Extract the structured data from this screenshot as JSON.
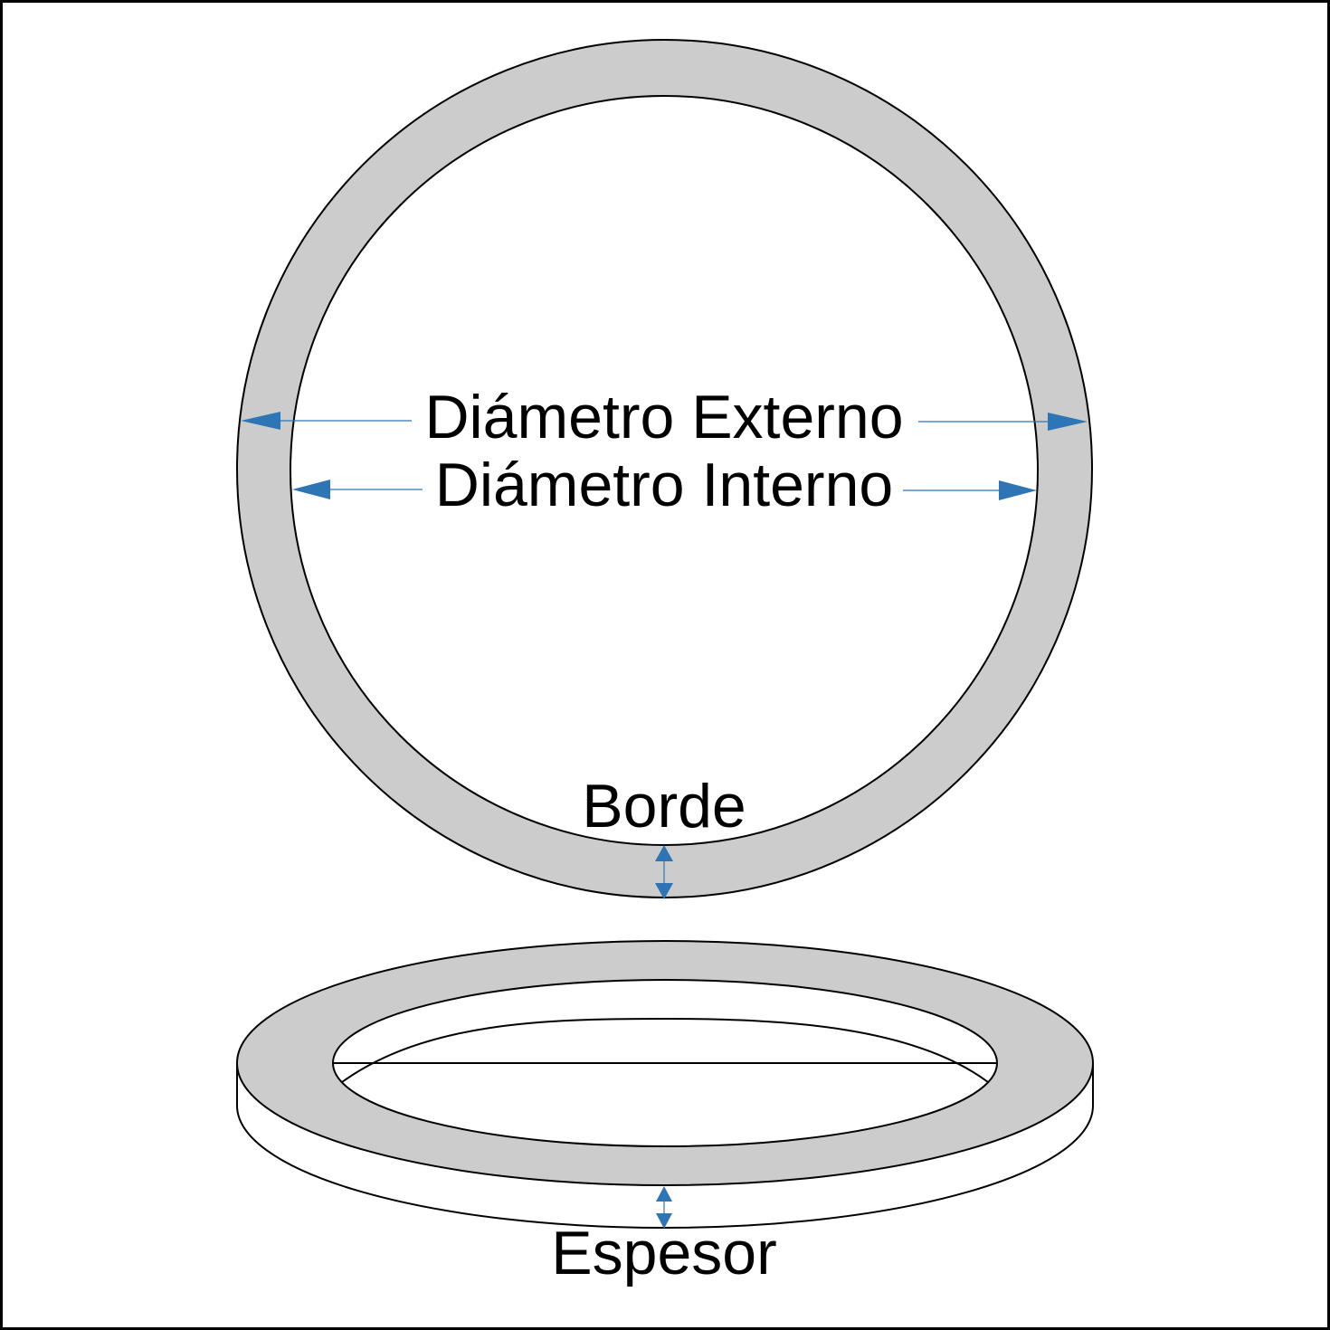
{
  "diagram": {
    "labels": {
      "outer_diameter": "Diámetro Externo",
      "inner_diameter": "Diámetro Interno",
      "rim": "Borde",
      "thickness": "Espesor"
    },
    "colors": {
      "ring_fill": "#cccccc",
      "outline": "#000000",
      "arrow": "#2e75b6",
      "background": "#ffffff"
    }
  }
}
